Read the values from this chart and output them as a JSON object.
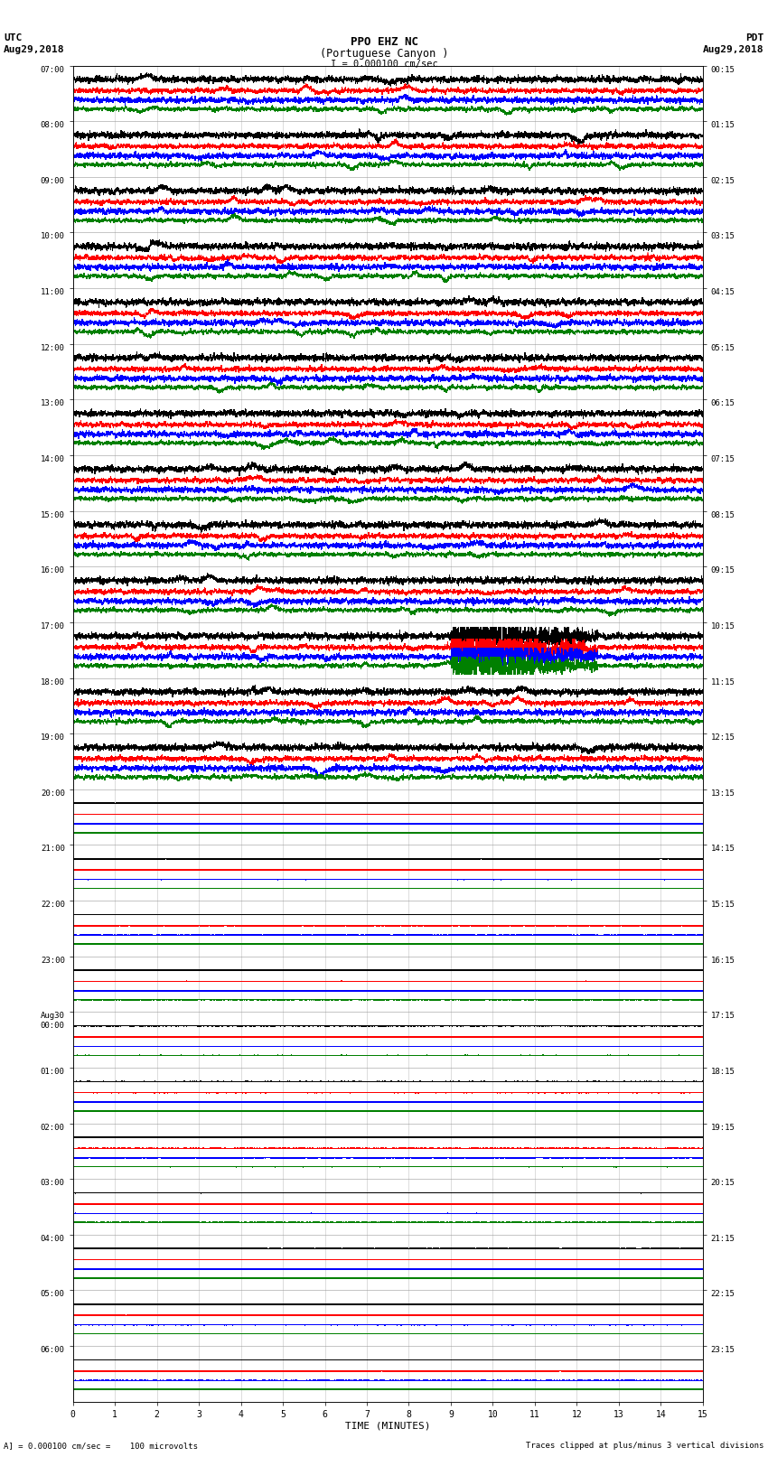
{
  "title_line1": "PPO EHZ NC",
  "title_line2": "(Portuguese Canyon )",
  "title_line3": "I = 0.000100 cm/sec",
  "left_header_line1": "UTC",
  "left_header_line2": "Aug29,2018",
  "right_header_line1": "PDT",
  "right_header_line2": "Aug29,2018",
  "footer_left": "A] = 0.000100 cm/sec =    100 microvolts",
  "footer_right": "Traces clipped at plus/minus 3 vertical divisions",
  "xlabel": "TIME (MINUTES)",
  "utc_labels": [
    "07:00",
    "08:00",
    "09:00",
    "10:00",
    "11:00",
    "12:00",
    "13:00",
    "14:00",
    "15:00",
    "16:00",
    "17:00",
    "18:00",
    "19:00",
    "20:00",
    "21:00",
    "22:00",
    "23:00",
    "Aug30\n00:00",
    "01:00",
    "02:00",
    "03:00",
    "04:00",
    "05:00",
    "06:00"
  ],
  "pdt_labels": [
    "00:15",
    "01:15",
    "02:15",
    "03:15",
    "04:15",
    "05:15",
    "06:15",
    "07:15",
    "08:15",
    "09:15",
    "10:15",
    "11:15",
    "12:15",
    "13:15",
    "14:15",
    "15:15",
    "16:15",
    "17:15",
    "18:15",
    "19:15",
    "20:15",
    "21:15",
    "22:15",
    "23:15"
  ],
  "n_rows": 24,
  "n_minutes": 15,
  "trace_colors": [
    "black",
    "red",
    "blue",
    "green"
  ],
  "n_traces": 4,
  "active_rows": [
    0,
    1,
    2,
    3,
    4,
    5,
    6,
    7,
    8,
    9,
    10,
    11,
    12
  ],
  "quake_star_row": 3,
  "quake_star_minute": 13.7,
  "arrow_row": 9,
  "arrow_minute": 14.0,
  "eq_row": 10,
  "eq_minute": 9.0,
  "green_burst_row": 10,
  "green_burst_minute": 7.5,
  "background_color": "white",
  "grid_color": "#999999"
}
